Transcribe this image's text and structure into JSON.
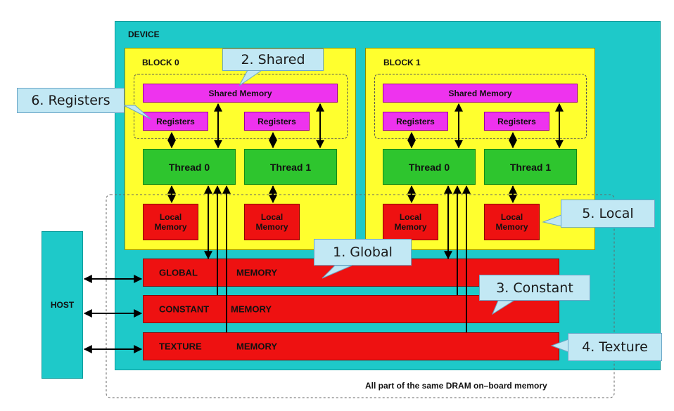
{
  "device": {
    "label": "DEVICE"
  },
  "blocks": [
    {
      "label": "BLOCK 0",
      "shared": "Shared Memory",
      "registers": [
        "Registers",
        "Registers"
      ],
      "threads": [
        "Thread 0",
        "Thread 1"
      ],
      "locals": [
        "Local\nMemory",
        "Local\nMemory"
      ]
    },
    {
      "label": "BLOCK 1",
      "shared": "Shared Memory",
      "registers": [
        "Registers",
        "Registers"
      ],
      "threads": [
        "Thread 0",
        "Thread 1"
      ],
      "locals": [
        "Local\nMemory",
        "Local\nMemory"
      ]
    }
  ],
  "memories": {
    "global": [
      "GLOBAL",
      "MEMORY"
    ],
    "constant": [
      "CONSTANT",
      "MEMORY"
    ],
    "texture": [
      "TEXTURE",
      "MEMORY"
    ]
  },
  "host": {
    "label": "HOST"
  },
  "footer": "All part of the same DRAM on–board memory",
  "callouts": {
    "shared": "2. Shared",
    "registers": "6. Registers",
    "global": "1. Global",
    "constant": "3. Constant",
    "local": "5. Local",
    "texture": "4. Texture"
  },
  "colors": {
    "device": "#1ec9c9",
    "block": "#ffff2e",
    "shared_memory": "#ee33ee",
    "thread": "#2ec52e",
    "memory": "#ee1111",
    "callout": "#c2e8f4"
  }
}
